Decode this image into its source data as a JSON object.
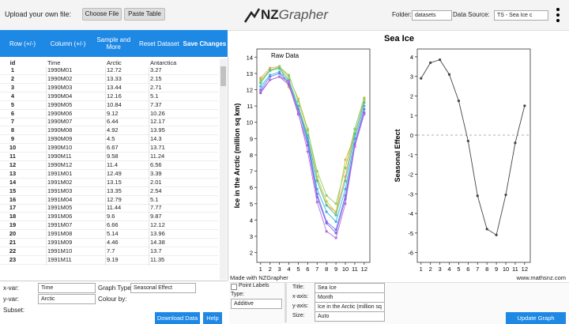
{
  "header": {
    "upload_label": "Upload your own file:",
    "buttons": [
      "Choose File",
      "Paste Table"
    ],
    "logo": [
      "NZ",
      "Grapher"
    ],
    "folder_label": "Folder:",
    "folder_value": "datasets",
    "source_label": "Data Source:",
    "source_value": "TS - Sea Ice c"
  },
  "toolbar": [
    "Row (+/-)",
    "Column (+/-)",
    "Sample and More",
    "Reset Dataset",
    "Save Changes"
  ],
  "table": {
    "columns": [
      "id",
      "Time",
      "Arctic",
      "Antarctica"
    ],
    "rows": [
      [
        "1",
        "1990M01",
        "12.72",
        "3.27"
      ],
      [
        "2",
        "1990M02",
        "13.33",
        "2.15"
      ],
      [
        "3",
        "1990M03",
        "13.44",
        "2.71"
      ],
      [
        "4",
        "1990M04",
        "12.16",
        "5.1"
      ],
      [
        "5",
        "1990M05",
        "10.84",
        "7.37"
      ],
      [
        "6",
        "1990M06",
        "9.12",
        "10.26"
      ],
      [
        "7",
        "1990M07",
        "6.44",
        "12.17"
      ],
      [
        "8",
        "1990M08",
        "4.92",
        "13.95"
      ],
      [
        "9",
        "1990M09",
        "4.5",
        "14.3"
      ],
      [
        "10",
        "1990M10",
        "6.67",
        "13.71"
      ],
      [
        "11",
        "1990M11",
        "9.58",
        "11.24"
      ],
      [
        "12",
        "1990M12",
        "11.4",
        "6.56"
      ],
      [
        "13",
        "1991M01",
        "12.49",
        "3.39"
      ],
      [
        "14",
        "1991M02",
        "13.15",
        "2.01"
      ],
      [
        "15",
        "1991M03",
        "13.35",
        "2.54"
      ],
      [
        "16",
        "1991M04",
        "12.79",
        "5.1"
      ],
      [
        "17",
        "1991M05",
        "11.44",
        "7.77"
      ],
      [
        "18",
        "1991M06",
        "9.6",
        "9.87"
      ],
      [
        "19",
        "1991M07",
        "6.66",
        "12.12"
      ],
      [
        "20",
        "1991M08",
        "5.14",
        "13.96"
      ],
      [
        "21",
        "1991M09",
        "4.46",
        "14.38"
      ],
      [
        "22",
        "1991M10",
        "7.7",
        "13.7"
      ],
      [
        "23",
        "1991M11",
        "9.19",
        "11.35"
      ]
    ]
  },
  "controls": {
    "xvar_label": "x-var:",
    "xvar": "Time",
    "graph_type_label": "Graph Type:",
    "graph_type": "Seasonal Effect",
    "yvar_label": "y-var:",
    "yvar": "Arctic",
    "colour_label": "Colour by:",
    "subset_label": "Subset:",
    "download": "Download Data",
    "help": "Help",
    "point_labels": "Point Labels",
    "type_label": "Type:",
    "type": "Additive",
    "title_label": "Title:",
    "title": "Sea Ice",
    "xaxis_label": "x-axis:",
    "xaxis": "Month",
    "yaxis_label": "y-axis:",
    "yaxis": "Ice in the Arctic (million sq",
    "size_label": "Size:",
    "size": "Auto",
    "update": "Update Graph"
  },
  "graph": {
    "title": "Sea Ice",
    "credit": "Made with NZGrapher",
    "website": "www.mathsnz.com"
  },
  "chart_data": [
    {
      "type": "line",
      "annotation": "Raw Data",
      "xlabel": "Month",
      "ylabel": "Ice in the Arctic (million sq km)",
      "x": [
        1,
        2,
        3,
        4,
        5,
        6,
        7,
        8,
        9,
        10,
        11,
        12
      ],
      "xlim": [
        0.6,
        12.6
      ],
      "xticks": [
        1,
        2,
        3,
        4,
        5,
        6,
        7,
        8,
        9,
        10,
        11,
        12
      ],
      "ylim": [
        1.4,
        14.5
      ],
      "yticks": [
        2,
        3,
        4,
        5,
        6,
        7,
        8,
        9,
        10,
        11,
        12,
        13,
        14
      ],
      "series": [
        {
          "color": "#f0a050",
          "values": [
            12.72,
            13.33,
            13.44,
            12.16,
            10.84,
            9.12,
            6.44,
            4.92,
            4.5,
            6.67,
            9.58,
            11.4
          ]
        },
        {
          "color": "#d8c040",
          "values": [
            12.49,
            13.15,
            13.35,
            12.79,
            11.44,
            9.6,
            6.66,
            5.14,
            4.46,
            7.7,
            9.19,
            11.3
          ]
        },
        {
          "color": "#8cd060",
          "values": [
            12.6,
            13.2,
            13.4,
            12.9,
            11.3,
            9.5,
            7.0,
            5.5,
            5.0,
            7.2,
            9.6,
            11.5
          ]
        },
        {
          "color": "#40c8a0",
          "values": [
            12.4,
            13.2,
            13.3,
            12.6,
            11.0,
            9.2,
            6.4,
            4.9,
            4.3,
            6.4,
            9.3,
            11.2
          ]
        },
        {
          "color": "#40b0e0",
          "values": [
            12.2,
            12.9,
            13.1,
            12.5,
            10.8,
            9.0,
            5.9,
            4.5,
            3.9,
            5.9,
            9.0,
            11.0
          ]
        },
        {
          "color": "#6080f0",
          "values": [
            12.0,
            12.8,
            13.0,
            12.4,
            10.8,
            8.8,
            5.6,
            3.9,
            3.4,
            5.5,
            8.7,
            10.8
          ]
        },
        {
          "color": "#9060e0",
          "values": [
            11.8,
            12.6,
            12.8,
            12.3,
            10.5,
            8.6,
            5.4,
            3.8,
            3.2,
            5.3,
            8.6,
            10.6
          ]
        },
        {
          "color": "#b070e0",
          "values": [
            11.9,
            12.6,
            12.8,
            12.5,
            10.6,
            8.2,
            5.1,
            3.3,
            2.9,
            5.0,
            8.5,
            10.5
          ]
        }
      ]
    },
    {
      "type": "line",
      "xlabel": "Month",
      "ylabel": "Seasonal Effect",
      "x": [
        1,
        2,
        3,
        4,
        5,
        6,
        7,
        8,
        9,
        10,
        11,
        12
      ],
      "xlim": [
        0.6,
        12.6
      ],
      "xticks": [
        1,
        2,
        3,
        4,
        5,
        6,
        7,
        8,
        9,
        10,
        11,
        12
      ],
      "ylim": [
        -6.5,
        4.4
      ],
      "yticks": [
        -6,
        -5,
        -4,
        -3,
        -2,
        -1,
        0,
        1,
        2,
        3,
        4
      ],
      "series": [
        {
          "color": "#444444",
          "values": [
            2.9,
            3.7,
            3.85,
            3.1,
            1.75,
            -0.3,
            -3.1,
            -4.8,
            -5.1,
            -3.05,
            -0.4,
            1.5
          ]
        }
      ]
    }
  ]
}
